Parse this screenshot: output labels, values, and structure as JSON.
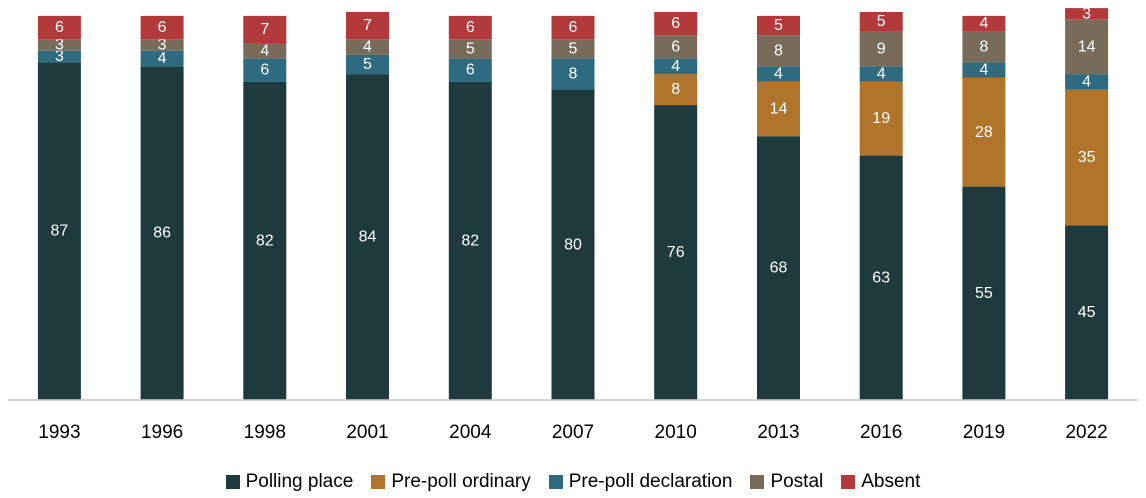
{
  "chart_data": {
    "type": "bar",
    "stacked": true,
    "categories": [
      "1993",
      "1996",
      "1998",
      "2001",
      "2004",
      "2007",
      "2010",
      "2013",
      "2016",
      "2019",
      "2022"
    ],
    "series": [
      {
        "name": "Polling place",
        "color": "#1f3a3d",
        "values": [
          87,
          86,
          82,
          84,
          82,
          80,
          76,
          68,
          63,
          55,
          45
        ]
      },
      {
        "name": "Pre-poll ordinary",
        "color": "#b0742a",
        "values": [
          0,
          0,
          0,
          0,
          0,
          0,
          8,
          14,
          19,
          28,
          35
        ]
      },
      {
        "name": "Pre-poll declaration",
        "color": "#2e6b80",
        "values": [
          3,
          4,
          6,
          5,
          6,
          8,
          4,
          4,
          4,
          4,
          4
        ]
      },
      {
        "name": "Postal",
        "color": "#786b5a",
        "values": [
          3,
          3,
          4,
          4,
          5,
          5,
          6,
          8,
          9,
          8,
          14
        ]
      },
      {
        "name": "Absent",
        "color": "#b33a3a",
        "values": [
          6,
          6,
          7,
          7,
          6,
          6,
          6,
          5,
          5,
          4,
          3
        ]
      }
    ],
    "ylim": [
      0,
      100
    ],
    "legend_position": "bottom",
    "grid": false
  }
}
